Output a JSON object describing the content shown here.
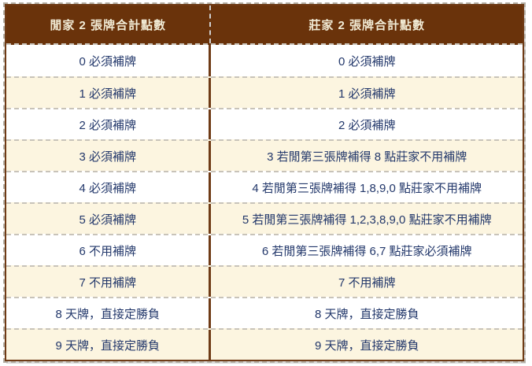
{
  "table": {
    "header": {
      "left": "閒家 2 張牌合計點數",
      "right": "莊家 2 張牌合計點數"
    },
    "rows": [
      {
        "left": "0 必須補牌",
        "right": "0 必須補牌"
      },
      {
        "left": "1 必須補牌",
        "right": "1 必須補牌"
      },
      {
        "left": "2 必須補牌",
        "right": "2 必須補牌"
      },
      {
        "left": "3 必須補牌",
        "right": "3 若閒第三張牌補得 8 點莊家不用補牌"
      },
      {
        "left": "4 必須補牌",
        "right": "4 若閒第三張牌補得 1,8,9,0 點莊家不用補牌"
      },
      {
        "left": "5 必須補牌",
        "right": "5 若閒第三張牌補得 1,2,3,8,9,0 點莊家不用補牌"
      },
      {
        "left": "6 不用補牌",
        "right": "6 若閒第三張牌補得 6,7 點莊家必須補牌"
      },
      {
        "left": "7 不用補牌",
        "right": "7 不用補牌"
      },
      {
        "left": "8 天牌，直接定勝負",
        "right": "8 天牌，直接定勝負"
      },
      {
        "left": "9 天牌，直接定勝負",
        "right": "9 天牌，直接定勝負"
      }
    ]
  },
  "colors": {
    "header_bg": "#6A330B",
    "header_text": "#F2ECD6",
    "body_text": "#23386B",
    "row_bg": "#FFFFFF",
    "row_alt_bg": "#FCF5E0",
    "divider_brown": "#6F3B16",
    "separator_gray": "#C8C3B9",
    "outer_dash": "#B5B0A6",
    "page_bg": "#FFFFFF"
  }
}
